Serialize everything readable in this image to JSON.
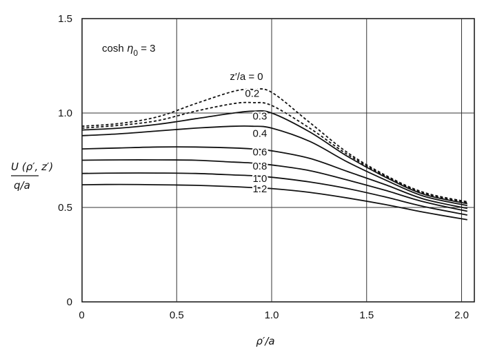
{
  "chart_data": {
    "type": "line",
    "annotation": {
      "prefix": "cosh ",
      "symbol": "η",
      "subscript": "0",
      "suffix": " = 3"
    },
    "xlabel": "ρ′/a",
    "ylabel_top": "U (ρ′, z′)",
    "ylabel_bottom": "q/a",
    "xlim": [
      0,
      2.1
    ],
    "ylim": [
      0,
      1.5
    ],
    "xticks": [
      {
        "v": 0,
        "label": "0"
      },
      {
        "v": 0.5,
        "label": "0.5"
      },
      {
        "v": 1.0,
        "label": "1.0"
      },
      {
        "v": 1.5,
        "label": "1.5"
      },
      {
        "v": 2.0,
        "label": "2.0"
      }
    ],
    "yticks": [
      {
        "v": 0,
        "label": "0"
      },
      {
        "v": 0.5,
        "label": "0.5"
      },
      {
        "v": 1.0,
        "label": "1.0"
      },
      {
        "v": 1.5,
        "label": "1.5"
      }
    ],
    "grid": true,
    "x": [
      0,
      0.2,
      0.4,
      0.6,
      0.8,
      0.9,
      1.0,
      1.2,
      1.4,
      1.6,
      1.8,
      2.03
    ],
    "series": [
      {
        "name": "z′/a = 0",
        "dashed": true,
        "values": [
          0.93,
          0.945,
          0.98,
          1.05,
          1.115,
          1.125,
          1.11,
          0.95,
          0.79,
          0.67,
          0.58,
          0.53
        ],
        "label": {
          "text": "z′/a = 0",
          "x": 0.78,
          "y": 1.175
        }
      },
      {
        "name": "0.2",
        "dashed": true,
        "values": [
          0.92,
          0.935,
          0.96,
          1.01,
          1.05,
          1.055,
          1.04,
          0.92,
          0.78,
          0.665,
          0.575,
          0.525
        ],
        "label": {
          "text": "0.2",
          "x": 0.86,
          "y": 1.085
        }
      },
      {
        "name": "0.3",
        "dashed": false,
        "values": [
          0.91,
          0.92,
          0.94,
          0.97,
          1.0,
          1.01,
          1.0,
          0.9,
          0.77,
          0.66,
          0.57,
          0.52
        ],
        "label": {
          "text": "0.3",
          "x": 0.9,
          "y": 0.965
        }
      },
      {
        "name": "0.4",
        "dashed": false,
        "values": [
          0.88,
          0.89,
          0.905,
          0.92,
          0.93,
          0.93,
          0.92,
          0.85,
          0.74,
          0.645,
          0.56,
          0.51
        ],
        "label": {
          "text": "0.4",
          "x": 0.9,
          "y": 0.875
        }
      },
      {
        "name": "0.6",
        "dashed": false,
        "values": [
          0.81,
          0.815,
          0.82,
          0.82,
          0.815,
          0.81,
          0.8,
          0.76,
          0.69,
          0.62,
          0.545,
          0.495
        ],
        "label": {
          "text": "0.6",
          "x": 0.9,
          "y": 0.775
        }
      },
      {
        "name": "0.8",
        "dashed": false,
        "values": [
          0.75,
          0.752,
          0.752,
          0.75,
          0.74,
          0.735,
          0.725,
          0.695,
          0.645,
          0.59,
          0.53,
          0.48
        ],
        "label": {
          "text": "0.8",
          "x": 0.9,
          "y": 0.7
        }
      },
      {
        "name": "1.0",
        "dashed": false,
        "values": [
          0.68,
          0.682,
          0.682,
          0.68,
          0.672,
          0.668,
          0.66,
          0.635,
          0.6,
          0.555,
          0.505,
          0.46
        ],
        "label": {
          "text": "1.0",
          "x": 0.9,
          "y": 0.635
        }
      },
      {
        "name": "1.2",
        "dashed": false,
        "values": [
          0.62,
          0.622,
          0.62,
          0.617,
          0.61,
          0.605,
          0.6,
          0.58,
          0.55,
          0.515,
          0.475,
          0.435
        ],
        "label": {
          "text": "1.2",
          "x": 0.9,
          "y": 0.58
        }
      }
    ]
  }
}
